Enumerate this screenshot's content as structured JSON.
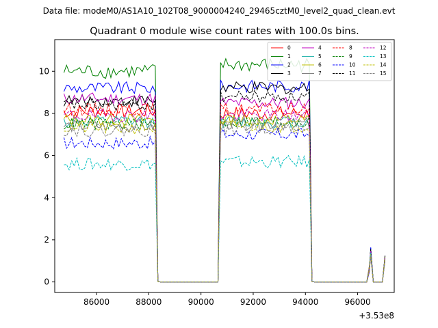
{
  "suptitle": "Data file: modeM0/AS1A10_102T08_9000004240_29465cztM0_level2_quad_clean.evt",
  "chart_data": {
    "type": "line",
    "title": "Quadrant 0 module wise count rates with 100.0s bins.",
    "xlabel": "",
    "ylabel": "",
    "x_offset_label": "+3.53e8",
    "x_offset": 353000000,
    "xlim": [
      84400,
      97400
    ],
    "ylim": [
      -0.5,
      11.5
    ],
    "xticks": [
      86000,
      88000,
      90000,
      92000,
      94000,
      96000
    ],
    "xtick_labels": [
      "86000",
      "88000",
      "90000",
      "92000",
      "94000",
      "96000"
    ],
    "yticks": [
      0,
      2,
      4,
      6,
      8,
      10
    ],
    "ytick_labels": [
      "0",
      "2",
      "4",
      "6",
      "8",
      "10"
    ],
    "grid": false,
    "legend_position": "top-right",
    "segments": [
      {
        "x_start": 84750,
        "x_end": 88250,
        "bin": 100
      },
      {
        "x_start": 88350,
        "x_end": 90650,
        "bin": 100
      },
      {
        "x_start": 90750,
        "x_end": 94150,
        "bin": 100
      },
      {
        "x_start": 94250,
        "x_end": 97050,
        "bin": 100
      }
    ],
    "late_bumps": {
      "x": [
        96500,
        97050
      ],
      "heights": [
        1.6,
        1.2
      ]
    },
    "series": [
      {
        "name": "0",
        "color": "#ff0000",
        "dash": "solid",
        "level1": 8.1,
        "level2": 8.0,
        "amp": 0.35
      },
      {
        "name": "1",
        "color": "#008000",
        "dash": "solid",
        "level1": 10.0,
        "level2": 10.3,
        "amp": 0.35
      },
      {
        "name": "2",
        "color": "#0000ff",
        "dash": "solid",
        "level1": 9.2,
        "level2": 9.3,
        "amp": 0.3
      },
      {
        "name": "3",
        "color": "#000000",
        "dash": "solid",
        "level1": 8.6,
        "level2": 9.2,
        "amp": 0.3
      },
      {
        "name": "4",
        "color": "#bf00bf",
        "dash": "solid",
        "level1": 8.7,
        "level2": 8.5,
        "amp": 0.3
      },
      {
        "name": "5",
        "color": "#20b2aa",
        "dash": "solid",
        "level1": 7.6,
        "level2": 7.6,
        "amp": 0.3
      },
      {
        "name": "6",
        "color": "#bfbf00",
        "dash": "solid",
        "level1": 7.7,
        "level2": 7.7,
        "amp": 0.3
      },
      {
        "name": "7",
        "color": "#808080",
        "dash": "solid",
        "level1": 7.4,
        "level2": 7.5,
        "amp": 0.3
      },
      {
        "name": "8",
        "color": "#ff0000",
        "dash": "dashed",
        "level1": 8.2,
        "level2": 8.2,
        "amp": 0.3
      },
      {
        "name": "9",
        "color": "#008000",
        "dash": "dashed",
        "level1": 7.5,
        "level2": 7.6,
        "amp": 0.3
      },
      {
        "name": "10",
        "color": "#0000ff",
        "dash": "dashed",
        "level1": 6.6,
        "level2": 7.0,
        "amp": 0.3
      },
      {
        "name": "11",
        "color": "#000000",
        "dash": "dashed",
        "level1": 8.4,
        "level2": 8.8,
        "amp": 0.3
      },
      {
        "name": "12",
        "color": "#bf00bf",
        "dash": "dashed",
        "level1": 7.9,
        "level2": 7.9,
        "amp": 0.3
      },
      {
        "name": "13",
        "color": "#00bfbf",
        "dash": "dashed",
        "level1": 5.6,
        "level2": 5.7,
        "amp": 0.3
      },
      {
        "name": "14",
        "color": "#bfbf00",
        "dash": "dashed",
        "level1": 7.3,
        "level2": 7.4,
        "amp": 0.3
      },
      {
        "name": "15",
        "color": "#808080",
        "dash": "dashed",
        "level1": 7.2,
        "level2": 7.3,
        "amp": 0.3
      }
    ]
  }
}
